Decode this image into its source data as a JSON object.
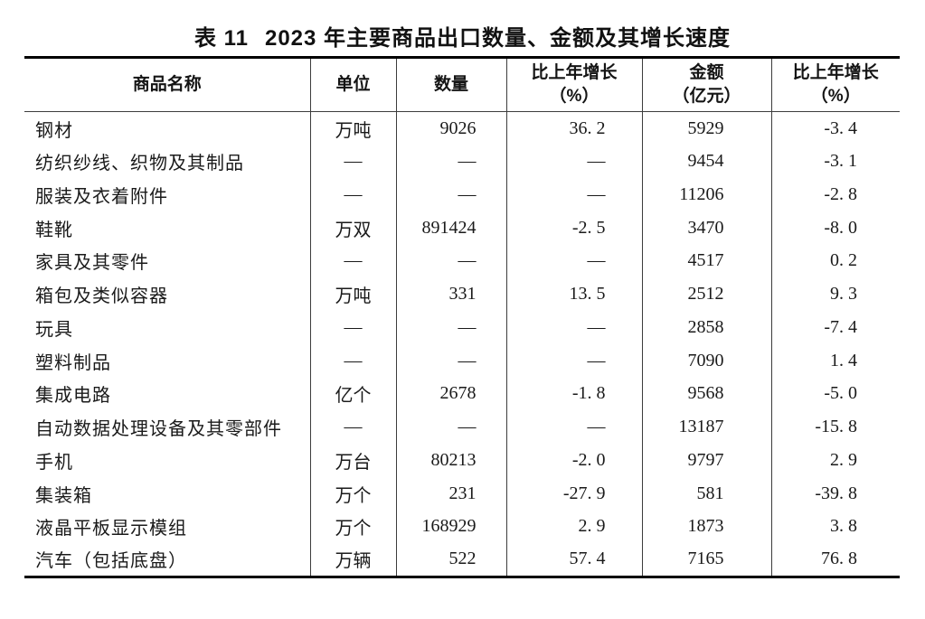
{
  "title": {
    "prefix": "表 11",
    "text": "2023 年主要商品出口数量、金额及其增长速度"
  },
  "table": {
    "columns": [
      {
        "key": "name",
        "label": "商品名称",
        "label2": ""
      },
      {
        "key": "unit",
        "label": "单位",
        "label2": ""
      },
      {
        "key": "quantity",
        "label": "数量",
        "label2": ""
      },
      {
        "key": "qty_growth",
        "label": "比上年增长",
        "label2": "（%）"
      },
      {
        "key": "value",
        "label": "金额",
        "label2": "（亿元）"
      },
      {
        "key": "value_growth",
        "label": "比上年增长",
        "label2": "（%）"
      }
    ],
    "placeholder": "—",
    "rows": [
      {
        "name": "钢材",
        "unit": "万吨",
        "quantity": "9026",
        "qty_growth": "36. 2",
        "value": "5929",
        "value_growth": "-3. 4"
      },
      {
        "name": "纺织纱线、织物及其制品",
        "unit": "—",
        "quantity": "—",
        "qty_growth": "—",
        "value": "9454",
        "value_growth": "-3. 1"
      },
      {
        "name": "服装及衣着附件",
        "unit": "—",
        "quantity": "—",
        "qty_growth": "—",
        "value": "11206",
        "value_growth": "-2. 8"
      },
      {
        "name": "鞋靴",
        "unit": "万双",
        "quantity": "891424",
        "qty_growth": "-2. 5",
        "value": "3470",
        "value_growth": "-8. 0"
      },
      {
        "name": "家具及其零件",
        "unit": "—",
        "quantity": "—",
        "qty_growth": "—",
        "value": "4517",
        "value_growth": "0. 2"
      },
      {
        "name": "箱包及类似容器",
        "unit": "万吨",
        "quantity": "331",
        "qty_growth": "13. 5",
        "value": "2512",
        "value_growth": "9. 3"
      },
      {
        "name": "玩具",
        "unit": "—",
        "quantity": "—",
        "qty_growth": "—",
        "value": "2858",
        "value_growth": "-7. 4"
      },
      {
        "name": "塑料制品",
        "unit": "—",
        "quantity": "—",
        "qty_growth": "—",
        "value": "7090",
        "value_growth": "1. 4"
      },
      {
        "name": "集成电路",
        "unit": "亿个",
        "quantity": "2678",
        "qty_growth": "-1. 8",
        "value": "9568",
        "value_growth": "-5. 0"
      },
      {
        "name": "自动数据处理设备及其零部件",
        "unit": "—",
        "quantity": "—",
        "qty_growth": "—",
        "value": "13187",
        "value_growth": "-15. 8"
      },
      {
        "name": "手机",
        "unit": "万台",
        "quantity": "80213",
        "qty_growth": "-2. 0",
        "value": "9797",
        "value_growth": "2. 9"
      },
      {
        "name": "集装箱",
        "unit": "万个",
        "quantity": "231",
        "qty_growth": "-27. 9",
        "value": "581",
        "value_growth": "-39. 8"
      },
      {
        "name": "液晶平板显示模组",
        "unit": "万个",
        "quantity": "168929",
        "qty_growth": "2. 9",
        "value": "1873",
        "value_growth": "3. 8"
      },
      {
        "name": "汽车（包括底盘）",
        "unit": "万辆",
        "quantity": "522",
        "qty_growth": "57. 4",
        "value": "7165",
        "value_growth": "76. 8"
      }
    ]
  },
  "colors": {
    "background": "#ffffff",
    "text": "#1a1a1a",
    "border_thick": "#000000",
    "border_thin": "#3c3c3c"
  }
}
